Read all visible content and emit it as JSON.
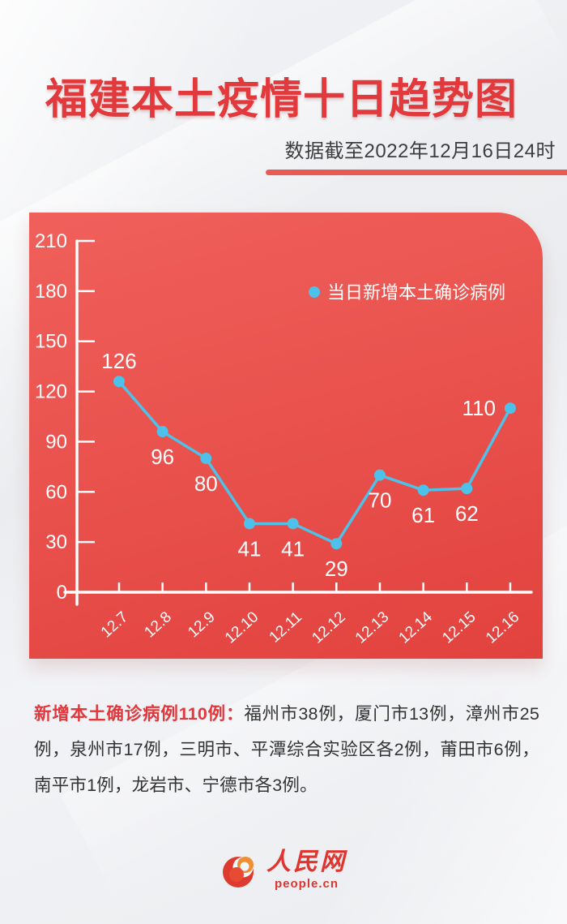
{
  "header": {
    "title": "福建本土疫情十日趋势图",
    "subtitle": "数据截至2022年12月16日24时"
  },
  "chart_data": {
    "type": "line",
    "categories": [
      "12.7",
      "12.8",
      "12.9",
      "12.10",
      "12.11",
      "12.12",
      "12.13",
      "12.14",
      "12.15",
      "12.16"
    ],
    "series": [
      {
        "name": "当日新增本土确诊病例",
        "values": [
          126,
          96,
          80,
          41,
          41,
          29,
          70,
          61,
          62,
          110
        ]
      }
    ],
    "ylim": [
      0,
      210
    ],
    "yticks": [
      0,
      30,
      60,
      90,
      120,
      150,
      180,
      210
    ],
    "grid": false,
    "legend_position": "top-right",
    "value_label_positions": [
      "top",
      "bottom",
      "bottom",
      "bottom",
      "bottom",
      "bottom",
      "bottom",
      "bottom",
      "bottom",
      "left"
    ],
    "colors": {
      "line": "#4dc1e9",
      "marker": "#4dc1e9",
      "axis": "#ffffff",
      "labels": "#ffffff",
      "card_bg_top": "#f0605b",
      "card_bg_bottom": "#e2423e"
    }
  },
  "note": {
    "lead": "新增本土确诊病例110例：",
    "body": "福州市38例，厦门市13例，漳州市25例，泉州市17例，三明市、平潭综合实验区各2例，莆田市6例，南平市1例，龙岩市、宁德市各3例。"
  },
  "footer": {
    "logo_cn": "人民网",
    "logo_domain": "people.cn"
  },
  "colors": {
    "title_red": "#e2393d",
    "accent_bar": "#ea5a55",
    "note_red": "#e0383c"
  }
}
